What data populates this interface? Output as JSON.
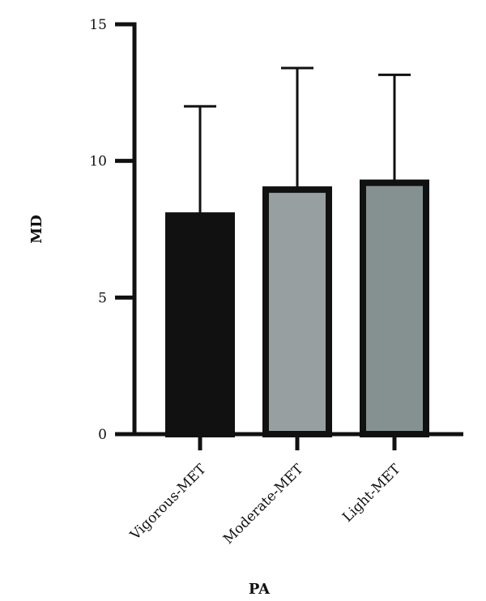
{
  "chart_data": {
    "type": "bar",
    "categories": [
      "Vigorous-MET",
      "Moderate-MET",
      "Light-MET"
    ],
    "values": [
      8.0,
      8.95,
      9.2
    ],
    "error_upper": [
      12.0,
      13.4,
      13.15
    ],
    "colors": [
      "#111111",
      "#979fa1",
      "#859191"
    ],
    "xlabel": "PA",
    "ylabel": "MD",
    "ylim": [
      0,
      15
    ],
    "yticks": [
      0,
      5,
      10,
      15
    ],
    "grid": false
  }
}
